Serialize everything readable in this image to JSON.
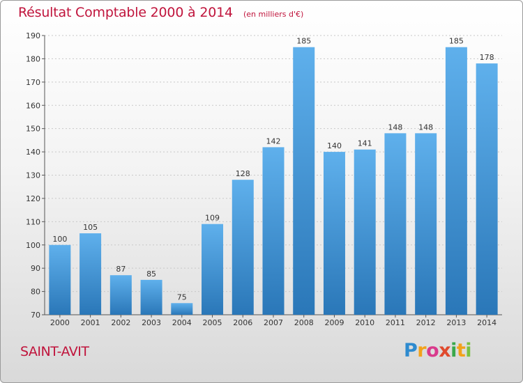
{
  "title": "Résultat Comptable 2000 à 2014",
  "subtitle": "(en milliers d'€)",
  "commune": "SAINT-AVIT",
  "logo": {
    "letters": [
      "P",
      "r",
      "o",
      "x",
      "i",
      "t",
      "i"
    ],
    "colors": [
      "#2e8bcf",
      "#f2a21b",
      "#d93a8c",
      "#e04a2d",
      "#3aa84b",
      "#f2a21b",
      "#7ac142"
    ]
  },
  "colors": {
    "bar_light": "#5fb0ec",
    "bar_dark": "#2a77b8",
    "title": "#c0143c",
    "grid": "#c8c8c8"
  },
  "chart_data": {
    "type": "bar",
    "categories": [
      "2000",
      "2001",
      "2002",
      "2003",
      "2004",
      "2005",
      "2006",
      "2007",
      "2008",
      "2009",
      "2010",
      "2011",
      "2012",
      "2013",
      "2014"
    ],
    "values": [
      100,
      105,
      87,
      85,
      75,
      109,
      128,
      142,
      185,
      140,
      141,
      148,
      148,
      185,
      178
    ],
    "title": "Résultat Comptable 2000 à 2014",
    "subtitle": "(en milliers d'€)",
    "xlabel": "",
    "ylabel": "",
    "ylim": [
      70,
      190
    ],
    "yticks": [
      70,
      80,
      90,
      100,
      110,
      120,
      130,
      140,
      150,
      160,
      170,
      180,
      190
    ],
    "grid": true,
    "legend": "none"
  }
}
